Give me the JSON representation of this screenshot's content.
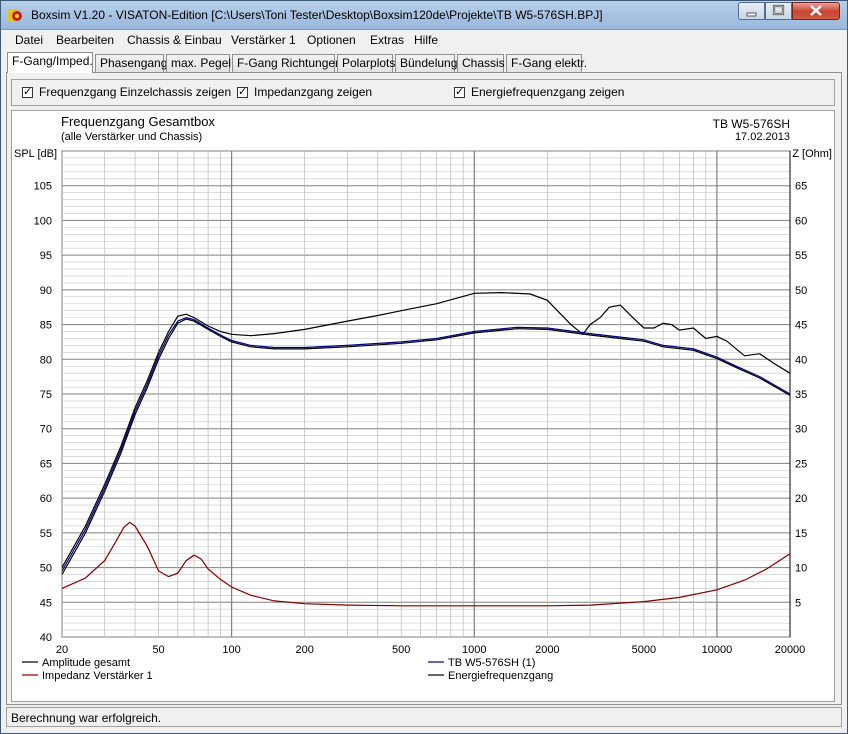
{
  "window": {
    "title": "Boxsim V1.20 - VISATON-Edition [C:\\Users\\Toni Tester\\Desktop\\Boxsim120de\\Projekte\\TB W5-576SH.BPJ]"
  },
  "menu": [
    "Datei",
    "Bearbeiten",
    "Chassis & Einbau",
    "Verstärker 1",
    "Optionen",
    "Extras",
    "Hilfe"
  ],
  "tabs": [
    "F-Gang/Imped.",
    "Phasengang",
    "max. Pegel",
    "F-Gang Richtungen",
    "Polarplots",
    "Bündelung",
    "Chassis",
    "F-Gang elektr."
  ],
  "active_tab": 0,
  "options": [
    {
      "label": "Frequenzgang Einzelchassis zeigen",
      "checked": true
    },
    {
      "label": "Impedanzgang zeigen",
      "checked": true
    },
    {
      "label": "Energiefrequenzgang zeigen",
      "checked": true
    }
  ],
  "status": "Berechnung war erfolgreich.",
  "chart_data": {
    "type": "line",
    "title": "Frequenzgang Gesamtbox",
    "subtitle": "(alle Verstärker und Chassis)",
    "right_title": "TB W5-576SH",
    "date": "17.02.2013",
    "ylabel": "SPL [dB]",
    "y2label": "Z [Ohm]",
    "xscale": "log",
    "xlim": [
      20,
      20000
    ],
    "ylim": [
      40,
      110
    ],
    "y2lim": [
      0,
      70
    ],
    "x_ticks": [
      20,
      50,
      100,
      200,
      500,
      1000,
      2000,
      5000,
      10000,
      20000
    ],
    "y_ticks": [
      40,
      45,
      50,
      55,
      60,
      65,
      70,
      75,
      80,
      85,
      90,
      95,
      100,
      105
    ],
    "y2_ticks": [
      5,
      10,
      15,
      20,
      25,
      30,
      35,
      40,
      45,
      50,
      55,
      60,
      65
    ],
    "grid": true,
    "legend": [
      {
        "name": "Amplitude gesamt",
        "color": "#000000"
      },
      {
        "name": "Impedanz Verstärker 1",
        "color": "#800000"
      },
      {
        "name": "TB W5-576SH (1)",
        "color": "#000080"
      },
      {
        "name": "Energiefrequenzgang",
        "color": "#000000"
      }
    ],
    "series": [
      {
        "name": "Amplitude gesamt",
        "axis": "left",
        "color": "#000000",
        "x": [
          20,
          25,
          30,
          35,
          40,
          45,
          50,
          55,
          60,
          65,
          70,
          80,
          90,
          100,
          120,
          150,
          200,
          300,
          400,
          500,
          700,
          1000,
          1300,
          1700,
          2000,
          2500,
          2800,
          3000,
          3300,
          3600,
          4000,
          4500,
          5000,
          5500,
          6000,
          6500,
          7000,
          8000,
          9000,
          10000,
          11000,
          12000,
          13000,
          15000,
          17000,
          20000
        ],
        "y": [
          50,
          56,
          62,
          67.5,
          73,
          77,
          81,
          84,
          86.2,
          86.5,
          86,
          84.8,
          84,
          83.6,
          83.4,
          83.7,
          84.3,
          85.5,
          86.3,
          87,
          88,
          89.5,
          89.6,
          89.4,
          88.5,
          85,
          83.6,
          85,
          86,
          87.5,
          87.8,
          86,
          84.5,
          84.5,
          85.2,
          85,
          84.2,
          84.5,
          83,
          83.3,
          82.6,
          81.5,
          80.5,
          80.8,
          79.5,
          78
        ]
      },
      {
        "name": "TB W5-576SH (1)",
        "axis": "left",
        "color": "#000080",
        "x": [
          20,
          25,
          30,
          35,
          40,
          45,
          50,
          55,
          60,
          65,
          70,
          80,
          90,
          100,
          120,
          150,
          200,
          300,
          500,
          700,
          1000,
          1500,
          2000,
          3000,
          4000,
          5000,
          6000,
          8000,
          10000,
          12000,
          15000,
          20000
        ],
        "y": [
          49.5,
          55.5,
          61.5,
          67,
          72.5,
          76.5,
          80.5,
          83.5,
          85.5,
          86,
          85.7,
          84.5,
          83.5,
          82.7,
          82,
          81.7,
          81.7,
          82,
          82.5,
          83,
          84,
          84.6,
          84.5,
          83.7,
          83.2,
          82.8,
          82,
          81.5,
          80.3,
          79,
          77.5,
          75
        ]
      },
      {
        "name": "Energiefrequenzgang",
        "axis": "left",
        "color": "#000000",
        "x": [
          20,
          25,
          30,
          35,
          40,
          45,
          50,
          55,
          60,
          65,
          70,
          80,
          90,
          100,
          120,
          150,
          200,
          300,
          500,
          700,
          1000,
          1500,
          2000,
          3000,
          4000,
          5000,
          6000,
          8000,
          10000,
          12000,
          15000,
          20000
        ],
        "y": [
          49,
          55,
          61,
          66.5,
          72,
          76,
          80,
          83,
          85.2,
          85.8,
          85.5,
          84.3,
          83.3,
          82.5,
          81.8,
          81.5,
          81.5,
          81.8,
          82.3,
          82.8,
          83.8,
          84.4,
          84.3,
          83.5,
          83,
          82.6,
          81.8,
          81.3,
          80.1,
          78.8,
          77.3,
          74.8
        ]
      },
      {
        "name": "Impedanz Verstärker 1",
        "axis": "right",
        "color": "#800000",
        "x": [
          20,
          25,
          30,
          33,
          36,
          38,
          40,
          45,
          50,
          55,
          60,
          65,
          70,
          75,
          80,
          90,
          100,
          120,
          150,
          200,
          300,
          500,
          1000,
          2000,
          3000,
          5000,
          7000,
          10000,
          13000,
          16000,
          20000
        ],
        "y": [
          7,
          8.5,
          11,
          13.5,
          15.8,
          16.5,
          16,
          13,
          9.5,
          8.7,
          9.2,
          11,
          11.8,
          11.2,
          9.8,
          8.3,
          7.2,
          6,
          5.2,
          4.8,
          4.6,
          4.5,
          4.5,
          4.5,
          4.6,
          5.1,
          5.7,
          6.8,
          8.2,
          9.8,
          12
        ]
      }
    ]
  }
}
